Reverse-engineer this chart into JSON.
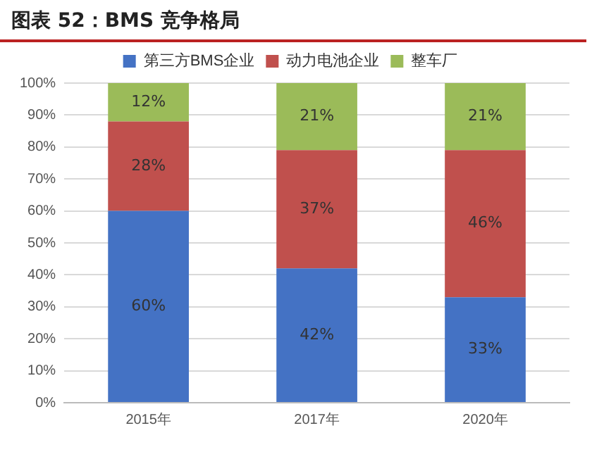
{
  "chart_data": {
    "type": "bar",
    "title": "图表 52：BMS 竞争格局",
    "categories": [
      "2015年",
      "2017年",
      "2020年"
    ],
    "series": [
      {
        "name": "第三方BMS企业",
        "color": "#4472c4",
        "values": [
          60,
          42,
          33
        ],
        "value_labels": [
          "60%",
          "42%",
          "33%"
        ]
      },
      {
        "name": "动力电池企业",
        "color": "#c0504d",
        "values": [
          28,
          37,
          46
        ],
        "value_labels": [
          "28%",
          "37%",
          "46%"
        ]
      },
      {
        "name": "整车厂",
        "color": "#9bbb59",
        "values": [
          12,
          21,
          21
        ],
        "value_labels": [
          "12%",
          "21%",
          "21%"
        ]
      }
    ],
    "stacked": true,
    "ylim": [
      0,
      100
    ],
    "yticks": [
      {
        "value": 0,
        "label": "0%"
      },
      {
        "value": 10,
        "label": "10%"
      },
      {
        "value": 20,
        "label": "20%"
      },
      {
        "value": 30,
        "label": "30%"
      },
      {
        "value": 40,
        "label": "40%"
      },
      {
        "value": 50,
        "label": "50%"
      },
      {
        "value": 60,
        "label": "60%"
      },
      {
        "value": 70,
        "label": "70%"
      },
      {
        "value": 80,
        "label": "80%"
      },
      {
        "value": 90,
        "label": "90%"
      },
      {
        "value": 100,
        "label": "100%"
      }
    ],
    "grid": "y",
    "legend": "top"
  }
}
